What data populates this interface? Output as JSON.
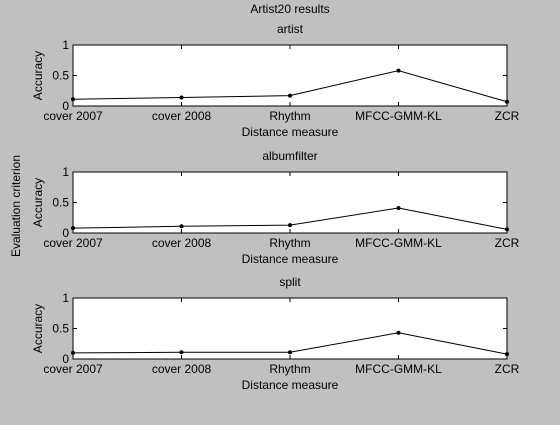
{
  "figure": {
    "title": "Artist20 results",
    "ylabel": "Evaluation criterion"
  },
  "colors": {
    "figure_bg": "#c0c0c0",
    "axes_bg": "#ffffff",
    "line": "#000000"
  },
  "chart_data": [
    {
      "type": "line",
      "title": "artist",
      "xlabel": "Distance measure",
      "ylabel": "Accuracy",
      "categories": [
        "cover 2007",
        "cover 2008",
        "Rhythm",
        "MFCC-GMM-KL",
        "ZCR"
      ],
      "values": [
        0.11,
        0.14,
        0.17,
        0.58,
        0.07
      ],
      "ylim": [
        0,
        1
      ],
      "yticks": [
        "0",
        "0.5",
        "1"
      ],
      "grid": false,
      "marker": "point"
    },
    {
      "type": "line",
      "title": "albumfilter",
      "xlabel": "Distance measure",
      "ylabel": "Accuracy",
      "categories": [
        "cover 2007",
        "cover 2008",
        "Rhythm",
        "MFCC-GMM-KL",
        "ZCR"
      ],
      "values": [
        0.08,
        0.11,
        0.13,
        0.41,
        0.06
      ],
      "ylim": [
        0,
        1
      ],
      "yticks": [
        "0",
        "0.5",
        "1"
      ],
      "grid": false,
      "marker": "point"
    },
    {
      "type": "line",
      "title": "split",
      "xlabel": "Distance measure",
      "ylabel": "Accuracy",
      "categories": [
        "cover 2007",
        "cover 2008",
        "Rhythm",
        "MFCC-GMM-KL",
        "ZCR"
      ],
      "values": [
        0.1,
        0.11,
        0.11,
        0.43,
        0.08
      ],
      "ylim": [
        0,
        1
      ],
      "yticks": [
        "0",
        "0.5",
        "1"
      ],
      "grid": false,
      "marker": "point"
    }
  ]
}
